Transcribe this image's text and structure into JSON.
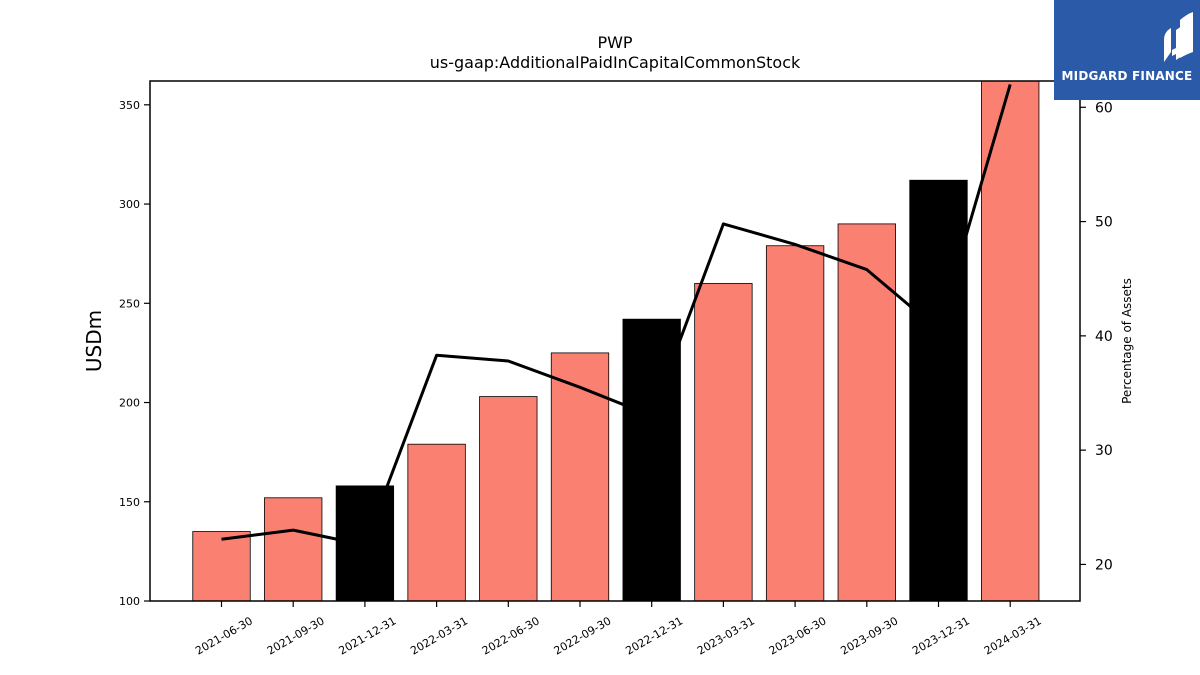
{
  "chart_data": {
    "type": "bar",
    "title": "PWP",
    "subtitle": "us-gaap:AdditionalPaidInCapitalCommonStock",
    "ylabel": "USDm",
    "y2label": "Percentage of Assets",
    "categories": [
      "2021-06-30",
      "2021-09-30",
      "2021-12-31",
      "2022-03-31",
      "2022-06-30",
      "2022-09-30",
      "2022-12-31",
      "2023-03-31",
      "2023-06-30",
      "2023-09-30",
      "2023-12-31",
      "2024-03-31"
    ],
    "series": [
      {
        "values": [
          135,
          152,
          158,
          179,
          203,
          225,
          242,
          260,
          279,
          290,
          312,
          362
        ]
      },
      {
        "axis": "right",
        "type": "line",
        "values": [
          22.2,
          23.0,
          21.7,
          38.3,
          37.8,
          35.5,
          33.0,
          49.8,
          48.0,
          45.8,
          40.5,
          62.0
        ]
      }
    ],
    "bar_colors": [
      "#fa8072",
      "#fa8072",
      "#000000",
      "#fa8072",
      "#fa8072",
      "#fa8072",
      "#000000",
      "#fa8072",
      "#fa8072",
      "#fa8072",
      "#000000",
      "#fa8072"
    ],
    "line_color": "#000000",
    "ylim": [
      100,
      362
    ],
    "y2lim": [
      16.8,
      62.3
    ],
    "yticks": [
      100,
      150,
      200,
      250,
      300,
      350
    ],
    "y2ticks": [
      20,
      30,
      40,
      50,
      60
    ],
    "grid": false
  },
  "logo": {
    "text": "MIDGARD FINANCE",
    "bg": "#2b5aa8"
  }
}
